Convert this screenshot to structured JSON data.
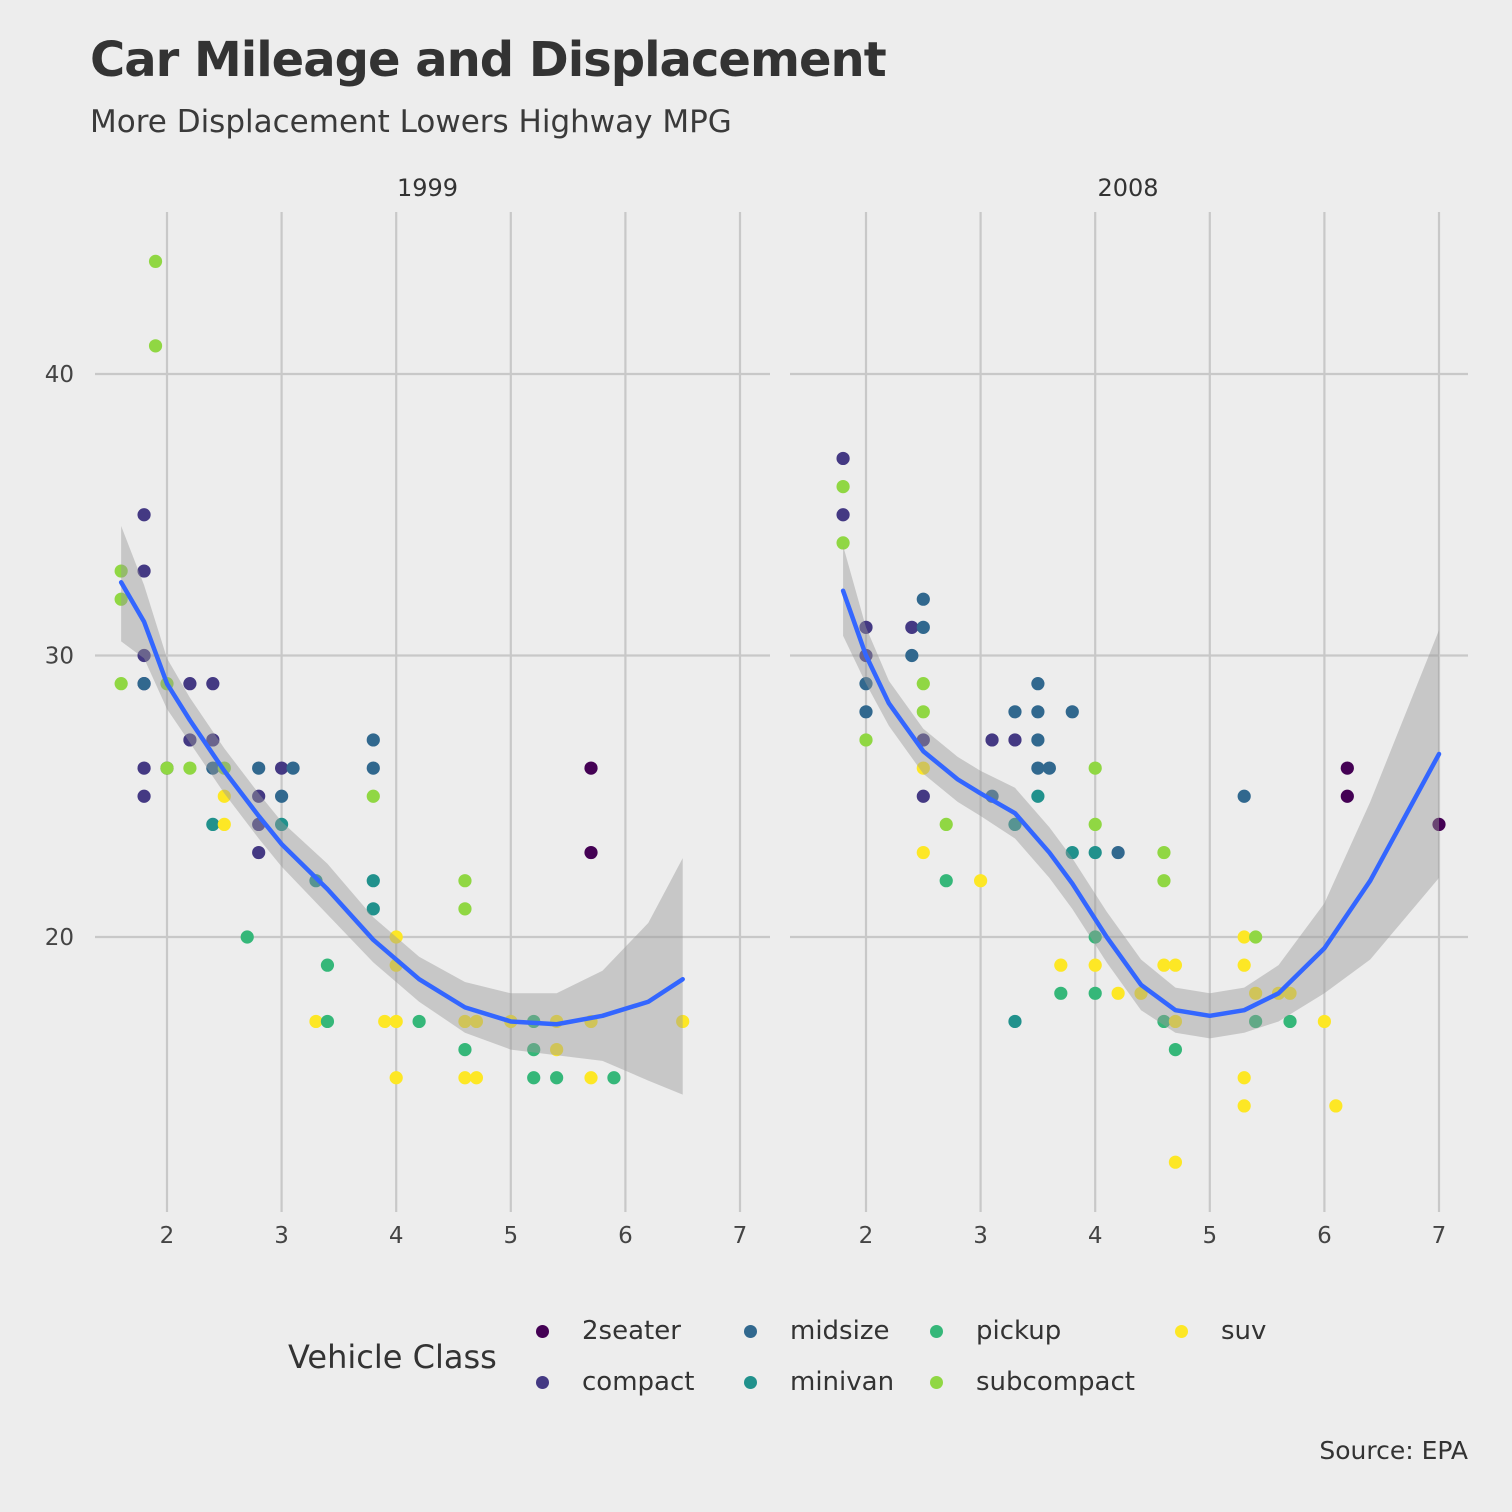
{
  "title": "Car Mileage and Displacement",
  "subtitle": "More Displacement Lowers Highway MPG",
  "caption": "Source: EPA",
  "legend": {
    "title": "Vehicle Class",
    "items": [
      {
        "label": "2seater",
        "color": "#440154"
      },
      {
        "label": "compact",
        "color": "#443983"
      },
      {
        "label": "midsize",
        "color": "#31688e"
      },
      {
        "label": "minivan",
        "color": "#21918c"
      },
      {
        "label": "pickup",
        "color": "#35b779"
      },
      {
        "label": "subcompact",
        "color": "#90d743"
      },
      {
        "label": "suv",
        "color": "#fde725"
      }
    ]
  },
  "chart_data": {
    "type": "scatter",
    "x_axis": {
      "ticks": [
        2,
        3,
        4,
        5,
        6,
        7
      ],
      "range": [
        1.2,
        7.3
      ]
    },
    "y_axis": {
      "ticks": [
        20,
        30,
        40
      ],
      "range": [
        10,
        45.5
      ]
    },
    "grid": true,
    "legend_position": "bottom",
    "smooth_color": "#3366ff",
    "ribbon_color": "#999999",
    "panels": [
      {
        "label": "1999",
        "points": [
          {
            "x": 1.6,
            "y": 33,
            "class": "subcompact"
          },
          {
            "x": 1.6,
            "y": 32,
            "class": "subcompact"
          },
          {
            "x": 1.6,
            "y": 29,
            "class": "subcompact"
          },
          {
            "x": 1.8,
            "y": 35,
            "class": "compact"
          },
          {
            "x": 1.8,
            "y": 33,
            "class": "compact"
          },
          {
            "x": 1.8,
            "y": 30,
            "class": "compact"
          },
          {
            "x": 1.8,
            "y": 29,
            "class": "compact"
          },
          {
            "x": 1.8,
            "y": 29,
            "class": "midsize"
          },
          {
            "x": 1.8,
            "y": 26,
            "class": "compact"
          },
          {
            "x": 1.8,
            "y": 25,
            "class": "compact"
          },
          {
            "x": 1.9,
            "y": 44,
            "class": "subcompact"
          },
          {
            "x": 1.9,
            "y": 41,
            "class": "subcompact"
          },
          {
            "x": 2.0,
            "y": 29,
            "class": "subcompact"
          },
          {
            "x": 2.0,
            "y": 26,
            "class": "compact"
          },
          {
            "x": 2.0,
            "y": 26,
            "class": "subcompact"
          },
          {
            "x": 2.2,
            "y": 29,
            "class": "compact"
          },
          {
            "x": 2.2,
            "y": 27,
            "class": "compact"
          },
          {
            "x": 2.2,
            "y": 26,
            "class": "subcompact"
          },
          {
            "x": 2.4,
            "y": 29,
            "class": "compact"
          },
          {
            "x": 2.4,
            "y": 27,
            "class": "compact"
          },
          {
            "x": 2.4,
            "y": 26,
            "class": "midsize"
          },
          {
            "x": 2.4,
            "y": 24,
            "class": "minivan"
          },
          {
            "x": 2.5,
            "y": 26,
            "class": "subcompact"
          },
          {
            "x": 2.5,
            "y": 25,
            "class": "suv"
          },
          {
            "x": 2.5,
            "y": 24,
            "class": "suv"
          },
          {
            "x": 2.7,
            "y": 20,
            "class": "pickup"
          },
          {
            "x": 2.8,
            "y": 26,
            "class": "midsize"
          },
          {
            "x": 2.8,
            "y": 25,
            "class": "compact"
          },
          {
            "x": 2.8,
            "y": 24,
            "class": "compact"
          },
          {
            "x": 2.8,
            "y": 23,
            "class": "compact"
          },
          {
            "x": 3.0,
            "y": 26,
            "class": "compact"
          },
          {
            "x": 3.0,
            "y": 25,
            "class": "midsize"
          },
          {
            "x": 3.0,
            "y": 24,
            "class": "minivan"
          },
          {
            "x": 3.1,
            "y": 26,
            "class": "midsize"
          },
          {
            "x": 3.3,
            "y": 22,
            "class": "minivan"
          },
          {
            "x": 3.3,
            "y": 17,
            "class": "suv"
          },
          {
            "x": 3.4,
            "y": 19,
            "class": "pickup"
          },
          {
            "x": 3.4,
            "y": 17,
            "class": "pickup"
          },
          {
            "x": 3.8,
            "y": 27,
            "class": "midsize"
          },
          {
            "x": 3.8,
            "y": 26,
            "class": "midsize"
          },
          {
            "x": 3.8,
            "y": 25,
            "class": "subcompact"
          },
          {
            "x": 3.8,
            "y": 22,
            "class": "minivan"
          },
          {
            "x": 3.8,
            "y": 21,
            "class": "minivan"
          },
          {
            "x": 3.9,
            "y": 17,
            "class": "suv"
          },
          {
            "x": 4.0,
            "y": 20,
            "class": "suv"
          },
          {
            "x": 4.0,
            "y": 19,
            "class": "suv"
          },
          {
            "x": 4.0,
            "y": 17,
            "class": "suv"
          },
          {
            "x": 4.0,
            "y": 15,
            "class": "suv"
          },
          {
            "x": 4.2,
            "y": 17,
            "class": "pickup"
          },
          {
            "x": 4.6,
            "y": 22,
            "class": "subcompact"
          },
          {
            "x": 4.6,
            "y": 21,
            "class": "subcompact"
          },
          {
            "x": 4.6,
            "y": 17,
            "class": "suv"
          },
          {
            "x": 4.6,
            "y": 16,
            "class": "pickup"
          },
          {
            "x": 4.6,
            "y": 15,
            "class": "suv"
          },
          {
            "x": 4.7,
            "y": 17,
            "class": "suv"
          },
          {
            "x": 4.7,
            "y": 15,
            "class": "suv"
          },
          {
            "x": 5.0,
            "y": 17,
            "class": "suv"
          },
          {
            "x": 5.2,
            "y": 17,
            "class": "pickup"
          },
          {
            "x": 5.2,
            "y": 16,
            "class": "pickup"
          },
          {
            "x": 5.2,
            "y": 15,
            "class": "pickup"
          },
          {
            "x": 5.4,
            "y": 17,
            "class": "suv"
          },
          {
            "x": 5.4,
            "y": 16,
            "class": "suv"
          },
          {
            "x": 5.4,
            "y": 15,
            "class": "pickup"
          },
          {
            "x": 5.7,
            "y": 26,
            "class": "2seater"
          },
          {
            "x": 5.7,
            "y": 23,
            "class": "2seater"
          },
          {
            "x": 5.7,
            "y": 17,
            "class": "suv"
          },
          {
            "x": 5.7,
            "y": 15,
            "class": "suv"
          },
          {
            "x": 5.9,
            "y": 15,
            "class": "pickup"
          },
          {
            "x": 6.5,
            "y": 17,
            "class": "suv"
          }
        ],
        "smooth": [
          {
            "x": 1.6,
            "y": 32.6,
            "lo": 30.5,
            "hi": 34.6
          },
          {
            "x": 1.8,
            "y": 31.2,
            "lo": 29.9,
            "hi": 32.5
          },
          {
            "x": 2.0,
            "y": 29.0,
            "lo": 28.1,
            "hi": 29.9
          },
          {
            "x": 2.2,
            "y": 27.7,
            "lo": 26.9,
            "hi": 28.5
          },
          {
            "x": 2.5,
            "y": 25.9,
            "lo": 25.1,
            "hi": 26.7
          },
          {
            "x": 2.8,
            "y": 24.3,
            "lo": 23.5,
            "hi": 25.1
          },
          {
            "x": 3.0,
            "y": 23.3,
            "lo": 22.5,
            "hi": 24.1
          },
          {
            "x": 3.4,
            "y": 21.7,
            "lo": 20.8,
            "hi": 22.6
          },
          {
            "x": 3.8,
            "y": 19.9,
            "lo": 19.1,
            "hi": 20.7
          },
          {
            "x": 4.2,
            "y": 18.5,
            "lo": 17.7,
            "hi": 19.3
          },
          {
            "x": 4.6,
            "y": 17.5,
            "lo": 16.6,
            "hi": 18.4
          },
          {
            "x": 5.0,
            "y": 17.0,
            "lo": 16.0,
            "hi": 18.0
          },
          {
            "x": 5.4,
            "y": 16.9,
            "lo": 15.8,
            "hi": 18.0
          },
          {
            "x": 5.8,
            "y": 17.2,
            "lo": 15.6,
            "hi": 18.8
          },
          {
            "x": 6.2,
            "y": 17.7,
            "lo": 14.9,
            "hi": 20.5
          },
          {
            "x": 6.5,
            "y": 18.5,
            "lo": 14.4,
            "hi": 22.8
          }
        ]
      },
      {
        "label": "2008",
        "points": [
          {
            "x": 1.8,
            "y": 37,
            "class": "compact"
          },
          {
            "x": 1.8,
            "y": 35,
            "class": "compact"
          },
          {
            "x": 1.8,
            "y": 36,
            "class": "subcompact"
          },
          {
            "x": 1.8,
            "y": 34,
            "class": "subcompact"
          },
          {
            "x": 2.0,
            "y": 31,
            "class": "compact"
          },
          {
            "x": 2.0,
            "y": 30,
            "class": "compact"
          },
          {
            "x": 2.0,
            "y": 29,
            "class": "midsize"
          },
          {
            "x": 2.0,
            "y": 28,
            "class": "midsize"
          },
          {
            "x": 2.0,
            "y": 27,
            "class": "subcompact"
          },
          {
            "x": 2.4,
            "y": 31,
            "class": "compact"
          },
          {
            "x": 2.4,
            "y": 30,
            "class": "midsize"
          },
          {
            "x": 2.5,
            "y": 32,
            "class": "midsize"
          },
          {
            "x": 2.5,
            "y": 31,
            "class": "midsize"
          },
          {
            "x": 2.5,
            "y": 29,
            "class": "subcompact"
          },
          {
            "x": 2.5,
            "y": 28,
            "class": "subcompact"
          },
          {
            "x": 2.5,
            "y": 27,
            "class": "compact"
          },
          {
            "x": 2.5,
            "y": 26,
            "class": "suv"
          },
          {
            "x": 2.5,
            "y": 25,
            "class": "compact"
          },
          {
            "x": 2.5,
            "y": 23,
            "class": "suv"
          },
          {
            "x": 2.7,
            "y": 24,
            "class": "subcompact"
          },
          {
            "x": 2.7,
            "y": 22,
            "class": "pickup"
          },
          {
            "x": 3.0,
            "y": 22,
            "class": "suv"
          },
          {
            "x": 3.1,
            "y": 27,
            "class": "compact"
          },
          {
            "x": 3.1,
            "y": 25,
            "class": "midsize"
          },
          {
            "x": 3.3,
            "y": 28,
            "class": "midsize"
          },
          {
            "x": 3.3,
            "y": 27,
            "class": "compact"
          },
          {
            "x": 3.3,
            "y": 24,
            "class": "minivan"
          },
          {
            "x": 3.3,
            "y": 17,
            "class": "minivan"
          },
          {
            "x": 3.5,
            "y": 29,
            "class": "midsize"
          },
          {
            "x": 3.5,
            "y": 28,
            "class": "midsize"
          },
          {
            "x": 3.5,
            "y": 27,
            "class": "midsize"
          },
          {
            "x": 3.5,
            "y": 26,
            "class": "midsize"
          },
          {
            "x": 3.5,
            "y": 25,
            "class": "minivan"
          },
          {
            "x": 3.6,
            "y": 26,
            "class": "midsize"
          },
          {
            "x": 3.7,
            "y": 19,
            "class": "suv"
          },
          {
            "x": 3.7,
            "y": 18,
            "class": "pickup"
          },
          {
            "x": 3.8,
            "y": 28,
            "class": "midsize"
          },
          {
            "x": 3.8,
            "y": 23,
            "class": "minivan"
          },
          {
            "x": 4.0,
            "y": 26,
            "class": "subcompact"
          },
          {
            "x": 4.0,
            "y": 24,
            "class": "subcompact"
          },
          {
            "x": 4.0,
            "y": 23,
            "class": "minivan"
          },
          {
            "x": 4.0,
            "y": 20,
            "class": "pickup"
          },
          {
            "x": 4.0,
            "y": 19,
            "class": "suv"
          },
          {
            "x": 4.0,
            "y": 18,
            "class": "pickup"
          },
          {
            "x": 4.2,
            "y": 23,
            "class": "midsize"
          },
          {
            "x": 4.2,
            "y": 18,
            "class": "suv"
          },
          {
            "x": 4.4,
            "y": 18,
            "class": "suv"
          },
          {
            "x": 4.6,
            "y": 23,
            "class": "subcompact"
          },
          {
            "x": 4.6,
            "y": 22,
            "class": "subcompact"
          },
          {
            "x": 4.6,
            "y": 19,
            "class": "suv"
          },
          {
            "x": 4.6,
            "y": 17,
            "class": "pickup"
          },
          {
            "x": 4.7,
            "y": 19,
            "class": "suv"
          },
          {
            "x": 4.7,
            "y": 17,
            "class": "suv"
          },
          {
            "x": 4.7,
            "y": 16,
            "class": "pickup"
          },
          {
            "x": 4.7,
            "y": 12,
            "class": "suv"
          },
          {
            "x": 5.3,
            "y": 25,
            "class": "midsize"
          },
          {
            "x": 5.3,
            "y": 20,
            "class": "suv"
          },
          {
            "x": 5.3,
            "y": 19,
            "class": "suv"
          },
          {
            "x": 5.3,
            "y": 15,
            "class": "suv"
          },
          {
            "x": 5.3,
            "y": 14,
            "class": "suv"
          },
          {
            "x": 5.4,
            "y": 20,
            "class": "subcompact"
          },
          {
            "x": 5.4,
            "y": 18,
            "class": "suv"
          },
          {
            "x": 5.4,
            "y": 17,
            "class": "pickup"
          },
          {
            "x": 5.6,
            "y": 18,
            "class": "suv"
          },
          {
            "x": 5.7,
            "y": 18,
            "class": "suv"
          },
          {
            "x": 5.7,
            "y": 17,
            "class": "pickup"
          },
          {
            "x": 6.0,
            "y": 17,
            "class": "suv"
          },
          {
            "x": 6.1,
            "y": 14,
            "class": "suv"
          },
          {
            "x": 6.2,
            "y": 26,
            "class": "2seater"
          },
          {
            "x": 6.2,
            "y": 25,
            "class": "2seater"
          },
          {
            "x": 7.0,
            "y": 24,
            "class": "2seater"
          }
        ],
        "smooth": [
          {
            "x": 1.8,
            "y": 32.3,
            "lo": 30.7,
            "hi": 33.9
          },
          {
            "x": 2.0,
            "y": 30.0,
            "lo": 29.0,
            "hi": 31.0
          },
          {
            "x": 2.2,
            "y": 28.3,
            "lo": 27.5,
            "hi": 29.1
          },
          {
            "x": 2.5,
            "y": 26.6,
            "lo": 25.8,
            "hi": 27.4
          },
          {
            "x": 2.8,
            "y": 25.6,
            "lo": 24.8,
            "hi": 26.4
          },
          {
            "x": 3.0,
            "y": 25.1,
            "lo": 24.3,
            "hi": 25.9
          },
          {
            "x": 3.3,
            "y": 24.4,
            "lo": 23.5,
            "hi": 25.3
          },
          {
            "x": 3.6,
            "y": 23.0,
            "lo": 22.1,
            "hi": 23.9
          },
          {
            "x": 3.8,
            "y": 21.9,
            "lo": 21.0,
            "hi": 22.8
          },
          {
            "x": 4.1,
            "y": 20.0,
            "lo": 19.1,
            "hi": 20.9
          },
          {
            "x": 4.4,
            "y": 18.3,
            "lo": 17.4,
            "hi": 19.2
          },
          {
            "x": 4.7,
            "y": 17.4,
            "lo": 16.6,
            "hi": 18.2
          },
          {
            "x": 5.0,
            "y": 17.2,
            "lo": 16.4,
            "hi": 18.0
          },
          {
            "x": 5.3,
            "y": 17.4,
            "lo": 16.6,
            "hi": 18.2
          },
          {
            "x": 5.6,
            "y": 18.0,
            "lo": 17.0,
            "hi": 19.0
          },
          {
            "x": 6.0,
            "y": 19.6,
            "lo": 18.0,
            "hi": 21.2
          },
          {
            "x": 6.4,
            "y": 22.0,
            "lo": 19.2,
            "hi": 24.8
          },
          {
            "x": 7.0,
            "y": 26.5,
            "lo": 22.1,
            "hi": 30.9
          }
        ]
      }
    ]
  }
}
